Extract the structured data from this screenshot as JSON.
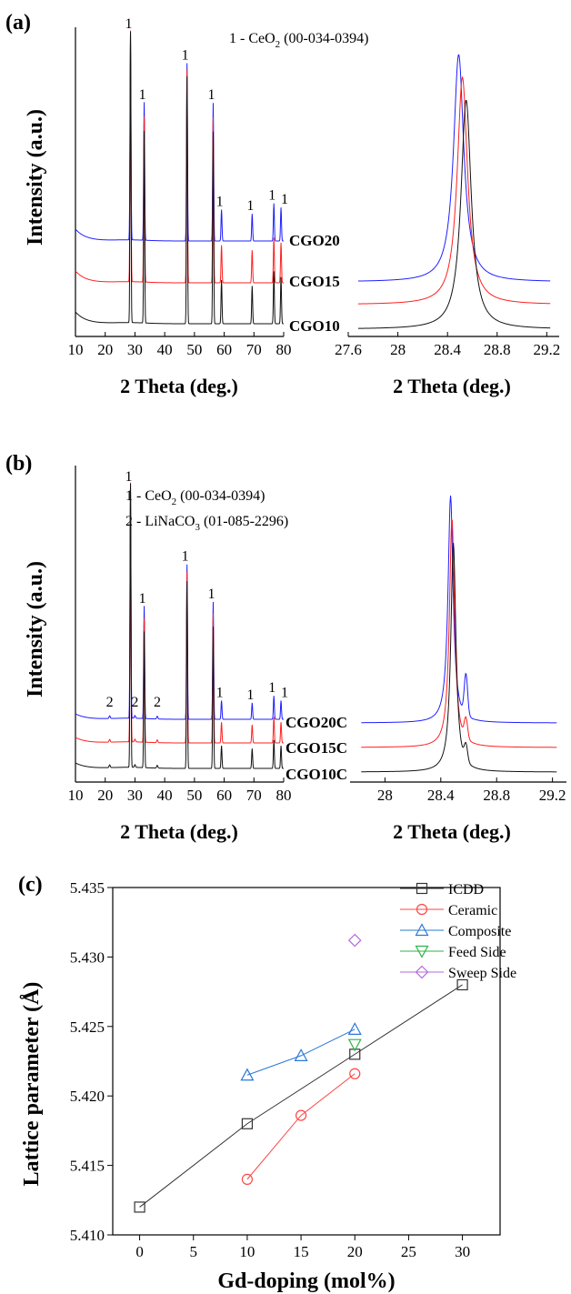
{
  "chart_data": [
    {
      "type": "line",
      "panel_label": "(a)",
      "ylabel": "Intensity (a.u.)",
      "xlabel": "2 Theta (deg.)",
      "xlim": [
        10,
        80
      ],
      "xticks": [
        10,
        20,
        30,
        40,
        50,
        60,
        70,
        80
      ],
      "annotation_main": "1 - CeO",
      "annotation_sub": "2",
      "annotation_tail": " (00-034-0394)",
      "peaks": [
        {
          "x": 28.5,
          "label": "1",
          "height": 1.0
        },
        {
          "x": 33.1,
          "label": "1",
          "height": 0.66
        },
        {
          "x": 47.5,
          "label": "1",
          "height": 0.85
        },
        {
          "x": 56.3,
          "label": "1",
          "height": 0.66
        },
        {
          "x": 59.1,
          "label": "1",
          "height": 0.15
        },
        {
          "x": 69.4,
          "label": "1",
          "height": 0.13
        },
        {
          "x": 76.7,
          "label": "1",
          "height": 0.18
        },
        {
          "x": 79.1,
          "label": "1",
          "height": 0.16
        }
      ],
      "series": [
        {
          "name": "CGO20",
          "color": "#1f1fff"
        },
        {
          "name": "CGO15",
          "color": "#ff1f1f"
        },
        {
          "name": "CGO10",
          "color": "#111111"
        }
      ],
      "zoom": {
        "xlabel": "2 Theta (deg.)",
        "xlim": [
          27.6,
          29.3
        ],
        "xticks": [
          27.6,
          28.0,
          28.4,
          28.8,
          29.2
        ],
        "peak_centers": [
          28.49,
          28.52,
          28.55
        ]
      }
    },
    {
      "type": "line",
      "panel_label": "(b)",
      "ylabel": "Intensity (a.u.)",
      "xlabel": "2 Theta (deg.)",
      "xlim": [
        10,
        80
      ],
      "xticks": [
        10,
        20,
        30,
        40,
        50,
        60,
        70,
        80
      ],
      "annotation1_main": "1 - CeO",
      "annotation1_sub": "2",
      "annotation1_tail": " (00-034-0394)",
      "annotation2_main": "2 - LiNaCO",
      "annotation2_sub": "3",
      "annotation2_tail": " (01-085-2296)",
      "peaks": [
        {
          "x": 28.5,
          "label": "1",
          "height": 1.0
        },
        {
          "x": 33.1,
          "label": "1",
          "height": 0.48
        },
        {
          "x": 47.5,
          "label": "1",
          "height": 0.66
        },
        {
          "x": 56.3,
          "label": "1",
          "height": 0.5
        },
        {
          "x": 59.1,
          "label": "1",
          "height": 0.08
        },
        {
          "x": 69.4,
          "label": "1",
          "height": 0.07
        },
        {
          "x": 76.7,
          "label": "1",
          "height": 0.1
        },
        {
          "x": 79.1,
          "label": "1",
          "height": 0.08
        }
      ],
      "impurity_peaks": [
        {
          "x": 21.5,
          "label": "2"
        },
        {
          "x": 30.0,
          "label": "2"
        },
        {
          "x": 37.5,
          "label": "2"
        }
      ],
      "series": [
        {
          "name": "CGO20C",
          "color": "#1f1fff"
        },
        {
          "name": "CGO15C",
          "color": "#ff1f1f"
        },
        {
          "name": "CGO10C",
          "color": "#111111"
        }
      ],
      "zoom": {
        "xlabel": "2 Theta (deg.)",
        "xlim": [
          27.75,
          29.3
        ],
        "xticks": [
          28.0,
          28.4,
          28.8,
          29.2
        ],
        "peak_centers": [
          28.47,
          28.48,
          28.49
        ]
      }
    },
    {
      "type": "line",
      "panel_label": "(c)",
      "xlabel": "Gd-doping (mol%)",
      "ylabel": "Lattice parameter (Å)",
      "xlim": [
        -2.5,
        33.5
      ],
      "ylim": [
        5.41,
        5.435
      ],
      "xticks": [
        0,
        5,
        10,
        15,
        20,
        25,
        30
      ],
      "yticks": [
        "5.410",
        "5.415",
        "5.420",
        "5.425",
        "5.430",
        "5.435"
      ],
      "legend_position": "top-right",
      "series": [
        {
          "name": "ICDD",
          "color": "#333333",
          "marker": "square",
          "x": [
            0,
            10,
            20,
            30
          ],
          "y": [
            5.412,
            5.418,
            5.423,
            5.428
          ]
        },
        {
          "name": "Ceramic",
          "color": "#ff4444",
          "marker": "circle",
          "x": [
            10,
            15,
            20
          ],
          "y": [
            5.414,
            5.4186,
            5.4216
          ]
        },
        {
          "name": "Composite",
          "color": "#2a78d6",
          "marker": "triangle-up",
          "x": [
            10,
            15,
            20
          ],
          "y": [
            5.4215,
            5.4229,
            5.4248
          ]
        },
        {
          "name": "Feed Side",
          "color": "#2db34a",
          "marker": "triangle-down",
          "x": [
            20
          ],
          "y": [
            5.4237
          ]
        },
        {
          "name": "Sweep Side",
          "color": "#b36bd6",
          "marker": "diamond",
          "x": [
            20
          ],
          "y": [
            5.4312
          ]
        }
      ]
    }
  ]
}
